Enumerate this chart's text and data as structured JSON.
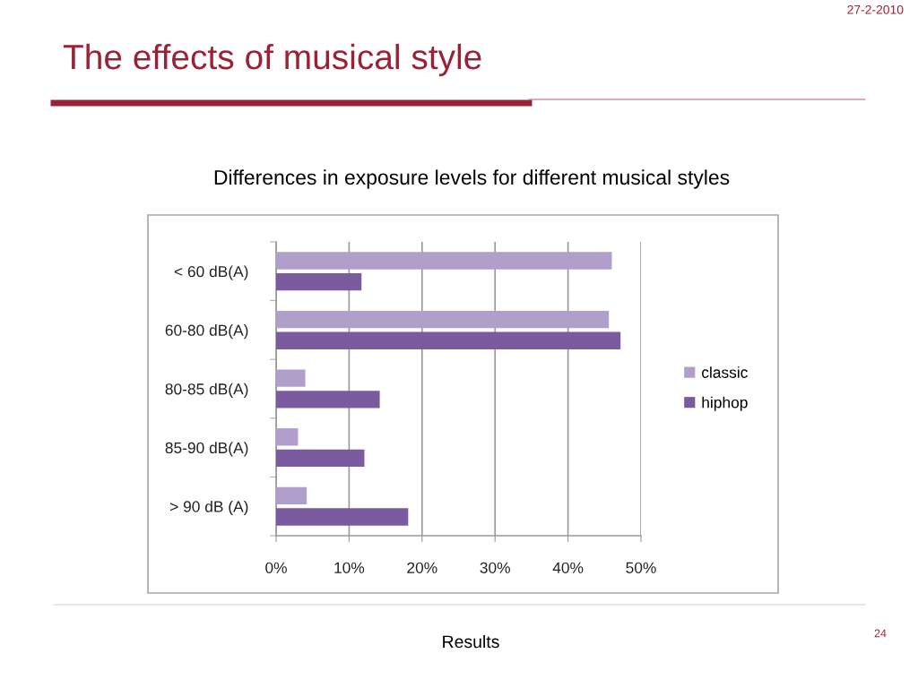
{
  "chart_data": {
    "type": "bar",
    "orientation": "horizontal",
    "title": "The effects of musical style",
    "subtitle": "Differences in exposure levels for different musical styles",
    "annotations": [
      "27-2-2010",
      "Results",
      "24"
    ],
    "categories": [
      "< 60 dB(A)",
      "60-80 dB(A)",
      "80-85 dB(A)",
      "85-90 dB(A)",
      "> 90 dB (A)"
    ],
    "series": [
      {
        "name": "classic",
        "color": "#b09fcb",
        "values": [
          46,
          45.6,
          4,
          3,
          4.2
        ]
      },
      {
        "name": "hiphop",
        "color": "#7b5b9f",
        "values": [
          11.7,
          47.2,
          14.2,
          12.1,
          18.1
        ]
      }
    ],
    "xlim": [
      0,
      50
    ],
    "xticks": [
      {
        "value": 0,
        "label": "0%"
      },
      {
        "value": 10,
        "label": "10%"
      },
      {
        "value": 20,
        "label": "20%"
      },
      {
        "value": 30,
        "label": "30%"
      },
      {
        "value": 40,
        "label": "40%"
      },
      {
        "value": 50,
        "label": "50%"
      }
    ],
    "grid": "x",
    "legend": "right"
  }
}
